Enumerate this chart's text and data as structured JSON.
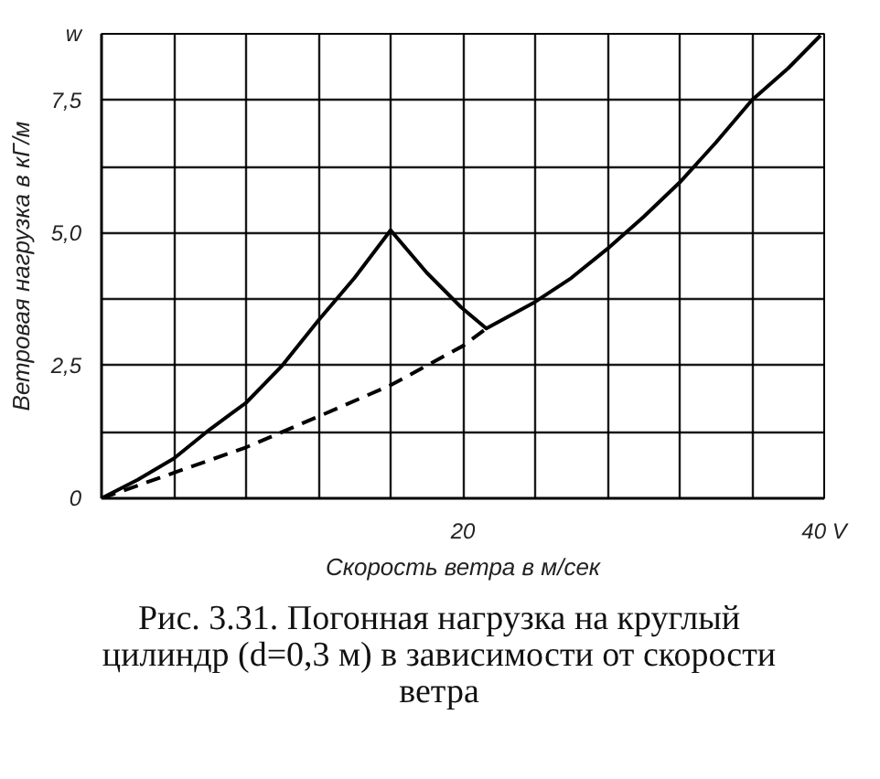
{
  "chart_data": {
    "type": "line",
    "xlabel": "Скорость ветра в м/сек",
    "ylabel": "Ветровая нагрузка в кГ/м",
    "annotations": [
      "Рис. 3.31. Погонная нагрузка на круглый цилиндр (d=0,3 м) в зависимости от скорости ветра"
    ],
    "xlim": [
      0,
      40
    ],
    "ylim": [
      0,
      8.75
    ],
    "xticks": [
      {
        "value": 4,
        "label": null
      },
      {
        "value": 8,
        "label": null
      },
      {
        "value": 12,
        "label": null
      },
      {
        "value": 16,
        "label": null
      },
      20,
      {
        "value": 24,
        "label": null
      },
      {
        "value": 28,
        "label": null
      },
      {
        "value": 32,
        "label": null
      },
      {
        "value": 36,
        "label": null
      },
      {
        "value": 40,
        "label": "40 V"
      }
    ],
    "yticks": [
      0,
      {
        "value": 1.25,
        "label": null
      },
      {
        "value": 2.5,
        "label": "2,5"
      },
      {
        "value": 3.75,
        "label": null
      },
      {
        "value": 5,
        "label": "5,0"
      },
      {
        "value": 6.25,
        "label": null
      },
      {
        "value": 7.5,
        "label": "7,5"
      },
      {
        "value": 8.75,
        "label": "w"
      }
    ],
    "grid": true,
    "series": [
      {
        "color": "#000000",
        "line_style": "solid",
        "x": [
          0,
          2,
          4,
          6,
          8,
          10,
          12,
          14,
          16,
          18,
          19.9,
          21.3,
          24,
          26,
          28,
          30,
          32,
          34,
          36,
          38,
          39.8
        ],
        "values": [
          0,
          0.35,
          0.75,
          1.3,
          1.8,
          2.5,
          3.35,
          4.15,
          5.05,
          4.25,
          3.6,
          3.2,
          3.7,
          4.15,
          4.7,
          5.3,
          5.95,
          6.7,
          7.5,
          8.1,
          8.72
        ]
      },
      {
        "color": "#000000",
        "line_style": "dashed",
        "x": [
          0,
          4,
          8,
          12,
          16,
          20,
          21.3
        ],
        "values": [
          0,
          0.48,
          0.96,
          1.54,
          2.13,
          2.87,
          3.2
        ]
      }
    ]
  }
}
